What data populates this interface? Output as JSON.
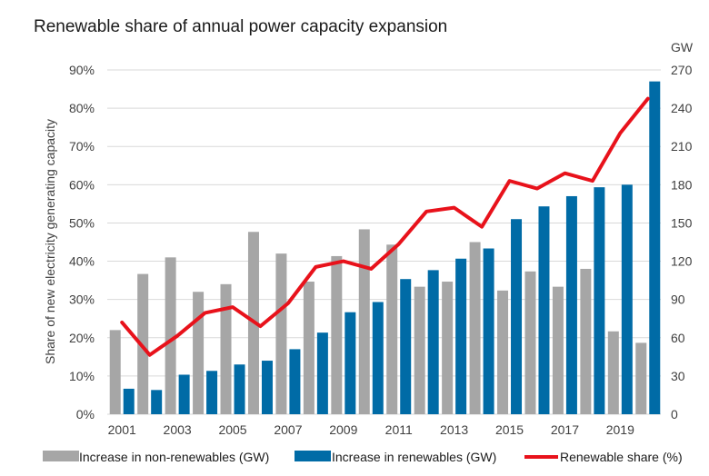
{
  "chart_data": {
    "type": "bar",
    "title": "Renewable share of annual power capacity expansion",
    "ylabel": "Share of new electricity generating capacity",
    "y2label": "GW",
    "x": [
      2001,
      2002,
      2003,
      2004,
      2005,
      2006,
      2007,
      2008,
      2009,
      2010,
      2011,
      2012,
      2013,
      2014,
      2015,
      2016,
      2017,
      2018,
      2019,
      2020
    ],
    "xticks": [
      "2001",
      "2003",
      "2005",
      "2007",
      "2009",
      "2011",
      "2013",
      "2015",
      "2017",
      "2019"
    ],
    "yticks": [
      "0%",
      "10%",
      "20%",
      "30%",
      "40%",
      "50%",
      "60%",
      "70%",
      "80%",
      "90%"
    ],
    "y2ticks": [
      "0",
      "30",
      "60",
      "90",
      "120",
      "150",
      "180",
      "210",
      "240",
      "270"
    ],
    "ylim": [
      0,
      90
    ],
    "y2lim": [
      0,
      270
    ],
    "grid": true,
    "legend_position": "bottom",
    "series": [
      {
        "name": "Increase in non-renewables (GW)",
        "type": "bar",
        "axis": "right",
        "color": "#a6a6a6",
        "values": [
          66,
          110,
          123,
          96,
          102,
          143,
          126,
          104,
          124,
          145,
          133,
          100,
          104,
          135,
          97,
          112,
          100,
          114,
          65,
          56
        ]
      },
      {
        "name": "Increase in renewables (GW)",
        "type": "bar",
        "axis": "right",
        "color": "#006ba6",
        "values": [
          20,
          19,
          31,
          34,
          39,
          42,
          51,
          64,
          80,
          88,
          106,
          113,
          122,
          130,
          153,
          163,
          171,
          178,
          180,
          261
        ]
      },
      {
        "name": "Renewable share (%)",
        "type": "line",
        "axis": "left",
        "color": "#e8121b",
        "values": [
          24,
          15.5,
          20.5,
          26.5,
          28,
          23,
          29,
          38.5,
          40,
          38,
          44.5,
          53,
          54,
          49,
          61,
          59,
          63,
          61,
          73.5,
          82.5
        ]
      }
    ]
  }
}
